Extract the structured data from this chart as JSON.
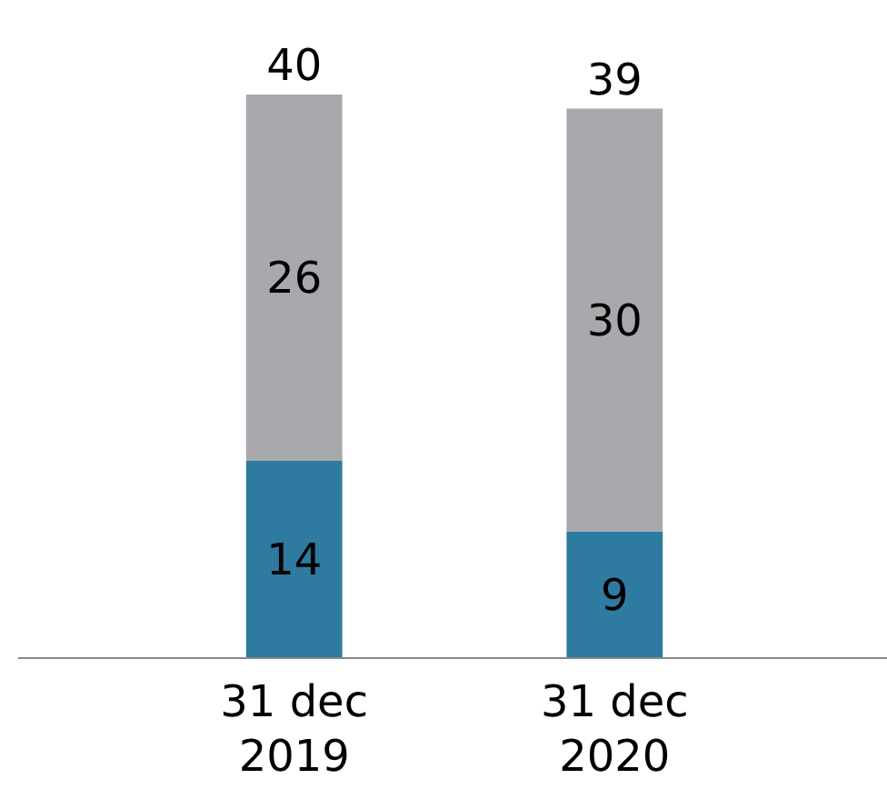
{
  "chart_data": {
    "type": "bar",
    "stacked": true,
    "categories": [
      "31 dec 2019",
      "31 dec 2020"
    ],
    "series": [
      {
        "color": "#2e7aa1",
        "values": [
          14,
          9
        ]
      },
      {
        "color": "#a7a9ac",
        "values": [
          26,
          30
        ]
      }
    ],
    "data_labels": true,
    "totals": [
      "40",
      "39"
    ]
  }
}
